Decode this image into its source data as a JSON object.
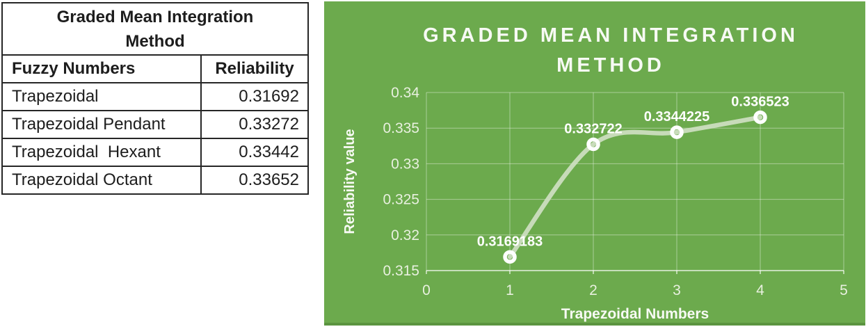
{
  "table": {
    "title": "Graded Mean Integration Method",
    "columns": [
      "Fuzzy Numbers",
      "Reliability"
    ],
    "rows": [
      {
        "fuzzy_number": "Trapezoidal",
        "reliability": "0.31692"
      },
      {
        "fuzzy_number": "Trapezoidal Pendant",
        "reliability": "0.33272"
      },
      {
        "fuzzy_number": "Trapezoidal  Hexant",
        "reliability": "0.33442"
      },
      {
        "fuzzy_number": "Trapezoidal Octant",
        "reliability": "0.33652"
      }
    ]
  },
  "chart_data": {
    "type": "line",
    "title": "GRADED MEAN INTEGRATION METHOD",
    "title_lines": [
      "GRADED MEAN INTEGRATION",
      "METHOD"
    ],
    "xlabel": "Trapezoidal Numbers",
    "ylabel": "Reliability value",
    "series": [
      {
        "name": "Reliability",
        "x": [
          1,
          2,
          3,
          4
        ],
        "y": [
          0.3169183,
          0.332722,
          0.3344225,
          0.336523
        ],
        "point_labels": [
          "0.3169183",
          "0.332722",
          "0.3344225",
          "0.336523"
        ]
      }
    ],
    "xlim": [
      0,
      5
    ],
    "ylim": [
      0.315,
      0.34
    ],
    "x_ticks": [
      0,
      1,
      2,
      3,
      4,
      5
    ],
    "x_tick_labels": [
      "0",
      "1",
      "2",
      "3",
      "4",
      "5"
    ],
    "y_ticks": [
      0.315,
      0.32,
      0.325,
      0.33,
      0.335,
      0.34
    ],
    "y_tick_labels": [
      "0.315",
      "0.32",
      "0.325",
      "0.33",
      "0.335",
      "0.34"
    ],
    "grid": true,
    "legend": false,
    "smooth": true,
    "marker": "open-circle"
  },
  "colors": {
    "chart_background": "#6caa4d",
    "chart_bottom_strip": "#5b9440",
    "series_line": "#cfe0c2",
    "marker_stroke": "#ffffff",
    "grid_line": "rgba(255,255,255,0.42)",
    "axis_line": "rgba(255,255,255,0.75)",
    "title_text": "#f7faf4",
    "tick_text": "#e8f0df",
    "data_label_text": "#ffffff",
    "table_border": "#262626",
    "table_text": "#1d1d1d"
  }
}
